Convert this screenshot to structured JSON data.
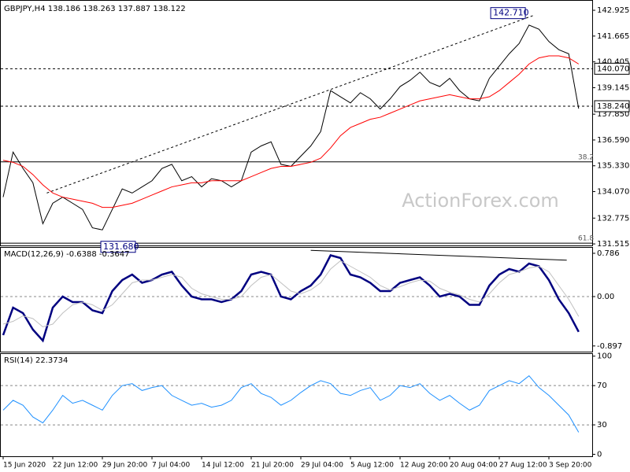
{
  "chart_data": [
    {
      "type": "line",
      "title": "GBPJPY,H4 138.186 138.263 137.887 138.122",
      "watermark": "ActionForex.com",
      "ylim": [
        131.44,
        143.35
      ],
      "yticks": [
        142.925,
        141.665,
        140.405,
        139.145,
        {
          "value": 137.85,
          "label": "137.850"
        },
        {
          "value": 136.59,
          "label": "136.590"
        },
        {
          "value": 135.33,
          "label": "135.330"
        },
        {
          "value": 134.07,
          "label": "134.070"
        },
        132.775,
        131.515
      ],
      "series": [
        {
          "color": "#000000",
          "values": [
            133.8,
            136.0,
            135.2,
            134.5,
            132.5,
            133.5,
            133.8,
            133.5,
            133.2,
            132.3,
            132.2,
            133.2,
            134.2,
            134.0,
            134.3,
            134.6,
            135.2,
            135.4,
            134.6,
            134.8,
            134.3,
            134.7,
            134.6,
            134.3,
            134.6,
            136.0,
            136.3,
            136.5,
            135.4,
            135.3,
            135.8,
            136.3,
            137.0,
            139.0,
            138.7,
            138.4,
            138.9,
            138.6,
            138.1,
            138.6,
            139.2,
            139.5,
            139.9,
            139.4,
            139.2,
            139.6,
            139.0,
            138.6,
            138.5,
            139.6,
            140.2,
            140.8,
            141.3,
            142.2,
            142.0,
            141.4,
            141.0,
            140.8,
            138.122
          ]
        },
        {
          "color": "#ff0000",
          "values": [
            135.6,
            135.5,
            135.3,
            134.9,
            134.4,
            134.0,
            133.8,
            133.7,
            133.6,
            133.5,
            133.3,
            133.3,
            133.4,
            133.5,
            133.7,
            133.9,
            134.1,
            134.3,
            134.4,
            134.5,
            134.5,
            134.6,
            134.6,
            134.6,
            134.6,
            134.8,
            135.0,
            135.2,
            135.3,
            135.3,
            135.4,
            135.5,
            135.7,
            136.2,
            136.8,
            137.2,
            137.4,
            137.6,
            137.7,
            137.9,
            138.1,
            138.3,
            138.5,
            138.6,
            138.7,
            138.8,
            138.7,
            138.6,
            138.6,
            138.7,
            139.0,
            139.4,
            139.8,
            140.3,
            140.6,
            140.7,
            140.7,
            140.6,
            140.3
          ]
        }
      ],
      "hlines": [
        {
          "value": 140.07,
          "label": "140.070"
        },
        {
          "value": 138.24,
          "label": "138.240"
        }
      ],
      "extremes": [
        {
          "x": 53.5,
          "value": 142.71,
          "label": "142.710"
        },
        {
          "x": 10,
          "value": 131.68,
          "label": "131.680"
        }
      ],
      "fib": [
        {
          "ratio": 38.2,
          "value": 135.52
        },
        {
          "ratio": 61.8,
          "value": 131.55
        }
      ],
      "trendline": {
        "x": [
          4.4,
          53.6
        ],
        "values": [
          134.0,
          142.7
        ]
      }
    },
    {
      "type": "line",
      "title": "MACD(12,26,9) -0.6388 -0.3647",
      "ylim": [
        -1.0,
        0.9
      ],
      "yticks": [
        0.786,
        {
          "value": 0,
          "label": "0.00"
        },
        -0.897
      ],
      "levels": [
        0
      ],
      "series": [
        {
          "color": "#000080",
          "values": [
            -0.7,
            -0.2,
            -0.3,
            -0.6,
            -0.8,
            -0.2,
            0.0,
            -0.1,
            -0.1,
            -0.25,
            -0.3,
            0.1,
            0.3,
            0.4,
            0.25,
            0.3,
            0.4,
            0.45,
            0.2,
            0.0,
            -0.05,
            -0.05,
            -0.1,
            -0.05,
            0.1,
            0.4,
            0.45,
            0.4,
            0.0,
            -0.05,
            0.1,
            0.2,
            0.4,
            0.75,
            0.7,
            0.4,
            0.35,
            0.25,
            0.1,
            0.1,
            0.25,
            0.3,
            0.35,
            0.2,
            0.0,
            0.05,
            0.0,
            -0.15,
            -0.15,
            0.2,
            0.4,
            0.5,
            0.45,
            0.6,
            0.55,
            0.3,
            -0.05,
            -0.3,
            -0.64
          ]
        },
        {
          "color": "#c0c0c0",
          "values": [
            -0.5,
            -0.45,
            -0.35,
            -0.4,
            -0.55,
            -0.5,
            -0.3,
            -0.15,
            -0.1,
            -0.15,
            -0.25,
            -0.15,
            0.05,
            0.25,
            0.3,
            0.3,
            0.35,
            0.4,
            0.35,
            0.15,
            0.05,
            0.0,
            -0.05,
            -0.05,
            0.0,
            0.2,
            0.35,
            0.4,
            0.25,
            0.1,
            0.05,
            0.12,
            0.25,
            0.5,
            0.65,
            0.55,
            0.45,
            0.35,
            0.2,
            0.12,
            0.18,
            0.25,
            0.3,
            0.28,
            0.15,
            0.08,
            0.03,
            -0.05,
            -0.1,
            0.05,
            0.25,
            0.4,
            0.45,
            0.52,
            0.55,
            0.45,
            0.2,
            -0.05,
            -0.36
          ]
        }
      ],
      "trendline": {
        "x": [
          31,
          56.8
        ],
        "values": [
          0.84,
          0.66
        ]
      }
    },
    {
      "type": "line",
      "title": "RSI(14) 22.3734",
      "ylim": [
        -2,
        103
      ],
      "yticks": [
        100,
        70,
        30,
        0
      ],
      "levels": [
        70,
        30
      ],
      "categories": [
        "15 Jun 2020",
        null,
        null,
        null,
        null,
        "22 Jun 12:00",
        null,
        null,
        null,
        null,
        "29 Jun 20:00",
        null,
        null,
        null,
        null,
        "7 Jul 04:00",
        null,
        null,
        null,
        null,
        "14 Jul 12:00",
        null,
        null,
        null,
        null,
        "21 Jul 20:00",
        null,
        null,
        null,
        null,
        "29 Jul 04:00",
        null,
        null,
        null,
        null,
        "5 Aug 12:00",
        null,
        null,
        null,
        null,
        "12 Aug 20:00",
        null,
        null,
        null,
        null,
        "20 Aug 04:00",
        null,
        null,
        null,
        null,
        "27 Aug 12:00",
        null,
        null,
        null,
        null,
        "3 Sep 20:00",
        null,
        null,
        null
      ],
      "series": [
        {
          "color": "#1e90ff",
          "values": [
            45,
            55,
            50,
            38,
            32,
            45,
            60,
            52,
            55,
            50,
            45,
            60,
            70,
            72,
            65,
            68,
            70,
            60,
            55,
            50,
            52,
            48,
            50,
            55,
            68,
            72,
            62,
            58,
            50,
            55,
            63,
            70,
            75,
            72,
            62,
            60,
            65,
            68,
            55,
            60,
            70,
            68,
            72,
            62,
            55,
            60,
            52,
            45,
            50,
            65,
            70,
            75,
            72,
            80,
            68,
            60,
            50,
            40,
            22.4
          ]
        }
      ]
    }
  ]
}
